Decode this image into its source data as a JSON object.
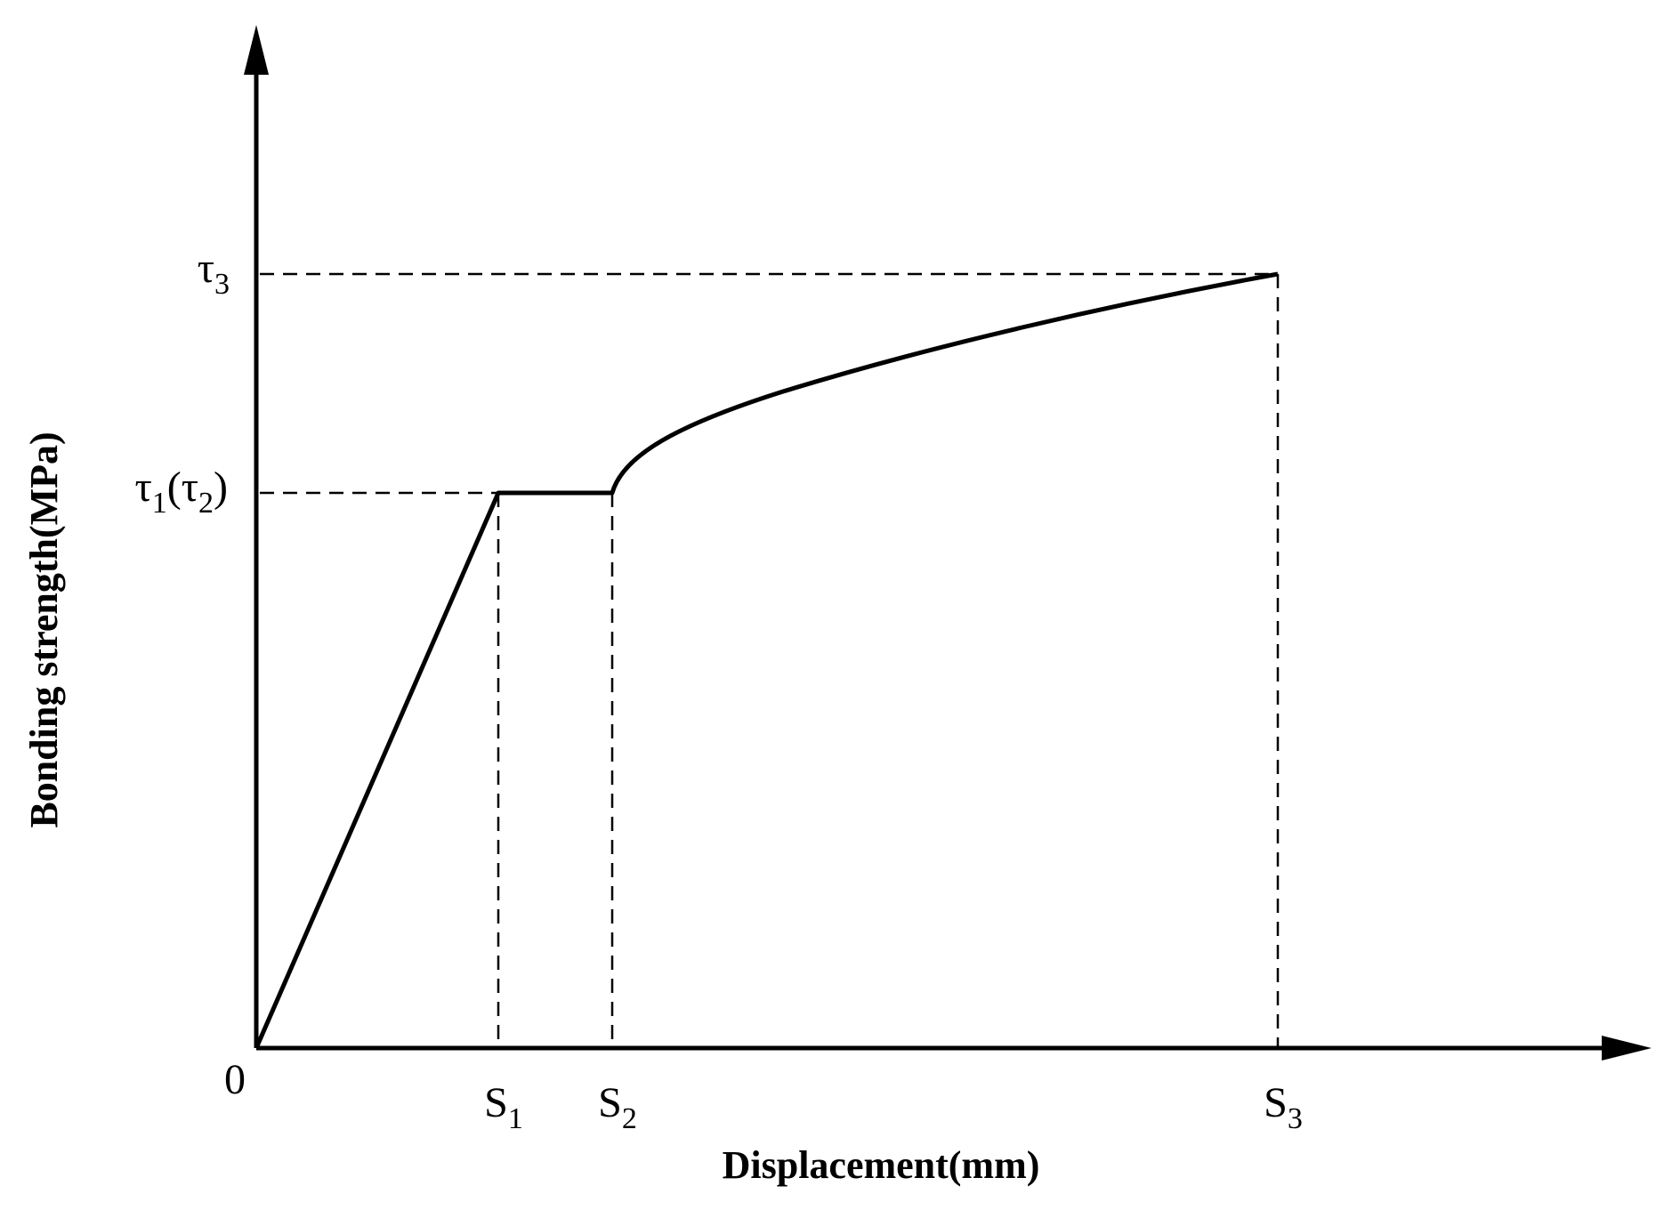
{
  "origin_label": "0",
  "x_axis_title": "Displacement(mm)",
  "y_axis_title": "Bonding strength(MPa)",
  "x_labels": [
    {
      "parts": [
        "S",
        "1"
      ]
    },
    {
      "parts": [
        "S",
        "2"
      ]
    },
    {
      "parts": [
        "S",
        "3"
      ]
    }
  ],
  "y_labels": [
    {
      "parts": [
        "τ",
        "3"
      ]
    },
    {
      "parts": [
        "τ",
        "1",
        "(τ",
        "2",
        ")"
      ]
    }
  ]
}
